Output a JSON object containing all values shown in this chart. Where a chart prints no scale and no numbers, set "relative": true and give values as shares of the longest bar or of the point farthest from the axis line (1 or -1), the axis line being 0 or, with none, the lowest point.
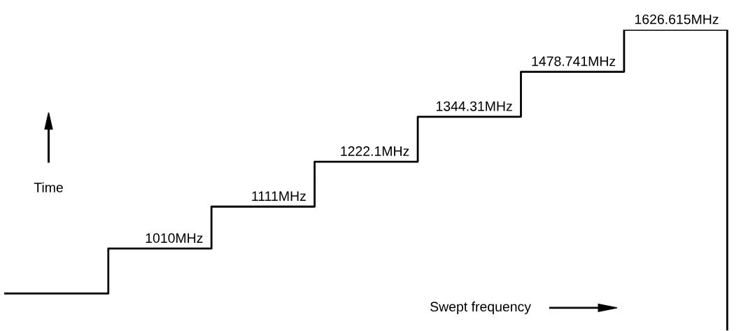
{
  "chart_data": {
    "type": "step",
    "relative": true,
    "categories": [
      null,
      null,
      null,
      null,
      null,
      null,
      null,
      null
    ],
    "series": [
      {
        "color": "#000000",
        "values": [
          0.12,
          0.27,
          0.41,
          0.56,
          0.71,
          0.86,
          1,
          0
        ]
      }
    ],
    "annotations": [
      "1010MHz",
      "1111MHz",
      "1222.1MHz",
      "1344.31MHz",
      "1478.741MHz",
      "1626.615MHz",
      "Time",
      "Swept frequency"
    ]
  }
}
